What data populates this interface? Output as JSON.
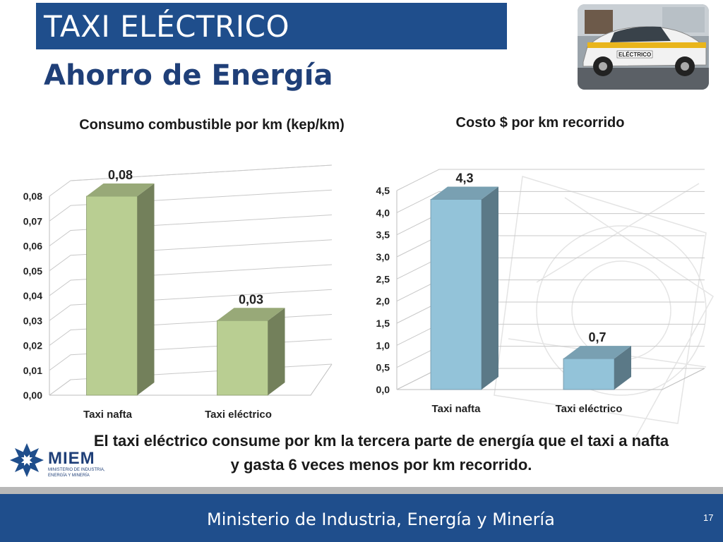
{
  "slide": {
    "title": "TAXI ELÉCTRICO",
    "subtitle": "Ahorro de Energía",
    "caption": "El taxi eléctrico consume por km la tercera parte de energía que el taxi a nafta y gasta 6 veces menos por km recorrido.",
    "footer_text": "Ministerio de Industria, Energía y Minería",
    "page_number": "17",
    "logo_name": "MIEM",
    "logo_subtitle": "MINISTERIO DE INDUSTRIA, ENERGÍA Y MINERÍA",
    "photo_icon": "electric-taxi-photo",
    "colors": {
      "banner": "#1f4e8c",
      "subtitle": "#1f3f78",
      "footer": "#1f4e8c"
    }
  },
  "chart_data": [
    {
      "type": "bar",
      "title": "Consumo combustible por km (kep/km)",
      "categories": [
        "Taxi nafta",
        "Taxi eléctrico"
      ],
      "values": [
        0.08,
        0.03
      ],
      "data_labels": [
        "0,08",
        "0,03"
      ],
      "ylim": [
        0,
        0.08
      ],
      "yticks": [
        "0,00",
        "0,01",
        "0,02",
        "0,03",
        "0,04",
        "0,05",
        "0,06",
        "0,07",
        "0,08"
      ],
      "xlabel": "",
      "ylabel": "",
      "grid": true,
      "legend": "none",
      "style": "3d",
      "color": "#b9ce92"
    },
    {
      "type": "bar",
      "title": "Costo $ por km recorrido",
      "categories": [
        "Taxi nafta",
        "Taxi eléctrico"
      ],
      "values": [
        4.3,
        0.7
      ],
      "data_labels": [
        "4,3",
        "0,7"
      ],
      "ylim": [
        0,
        4.5
      ],
      "yticks": [
        "0,0",
        "0,5",
        "1,0",
        "1,5",
        "2,0",
        "2,5",
        "3,0",
        "3,5",
        "4,0",
        "4,5"
      ],
      "xlabel": "",
      "ylabel": "",
      "grid": true,
      "legend": "none",
      "style": "3d",
      "color": "#93c3d9"
    }
  ]
}
